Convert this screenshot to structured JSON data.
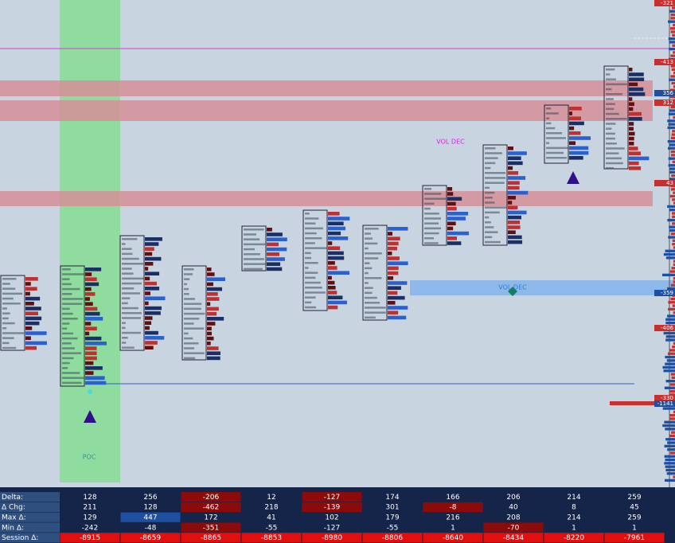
{
  "chart_area": {
    "annotations": [
      {
        "text": "VOL DEC",
        "color": "#e020e0"
      },
      {
        "text": "VOL DEC",
        "color": "#2a7fd0"
      },
      {
        "text": "POC",
        "color": "#2a8fc0"
      }
    ],
    "price_labels": [
      "-321",
      "-413",
      "356",
      "312",
      "43",
      "-359",
      "-406",
      "-330",
      "-1141"
    ]
  },
  "table": {
    "rows": [
      {
        "label": "Delta:",
        "values": [
          "128",
          "256",
          "-206",
          "12",
          "-127",
          "174",
          "166",
          "206",
          "214",
          "259"
        ],
        "colors": [
          null,
          null,
          "#8b0a0a",
          null,
          "#8b0a0a",
          null,
          null,
          null,
          null,
          null
        ]
      },
      {
        "label": "Δ Chg:",
        "values": [
          "211",
          "128",
          "-462",
          "218",
          "-139",
          "301",
          "-8",
          "40",
          "8",
          "45"
        ],
        "colors": [
          null,
          null,
          "#8b0a0a",
          null,
          "#8b0a0a",
          null,
          "#8b0a0a",
          null,
          null,
          null
        ]
      },
      {
        "label": "Max Δ:",
        "values": [
          "129",
          "447",
          "172",
          "41",
          "102",
          "179",
          "216",
          "208",
          "214",
          "259"
        ],
        "colors": [
          null,
          "#1f4fa0",
          null,
          null,
          null,
          null,
          null,
          null,
          null,
          null
        ]
      },
      {
        "label": "Min Δ:",
        "values": [
          "-242",
          "-48",
          "-351",
          "-55",
          "-127",
          "-55",
          "1",
          "-70",
          "1",
          "1"
        ],
        "colors": [
          null,
          null,
          "#8b0a0a",
          null,
          null,
          null,
          null,
          "#8b0a0a",
          null,
          null
        ]
      },
      {
        "label": "Session Δ:",
        "values": [
          "-8915",
          "-8659",
          "-8865",
          "-8853",
          "-8980",
          "-8806",
          "-8640",
          "-8434",
          "-8220",
          "-7961"
        ],
        "colors": [
          "#e01010",
          "#e01010",
          "#e01010",
          "#e01010",
          "#e01010",
          "#e01010",
          "#e01010",
          "#e01010",
          "#e01010",
          "#e01010"
        ]
      }
    ]
  }
}
